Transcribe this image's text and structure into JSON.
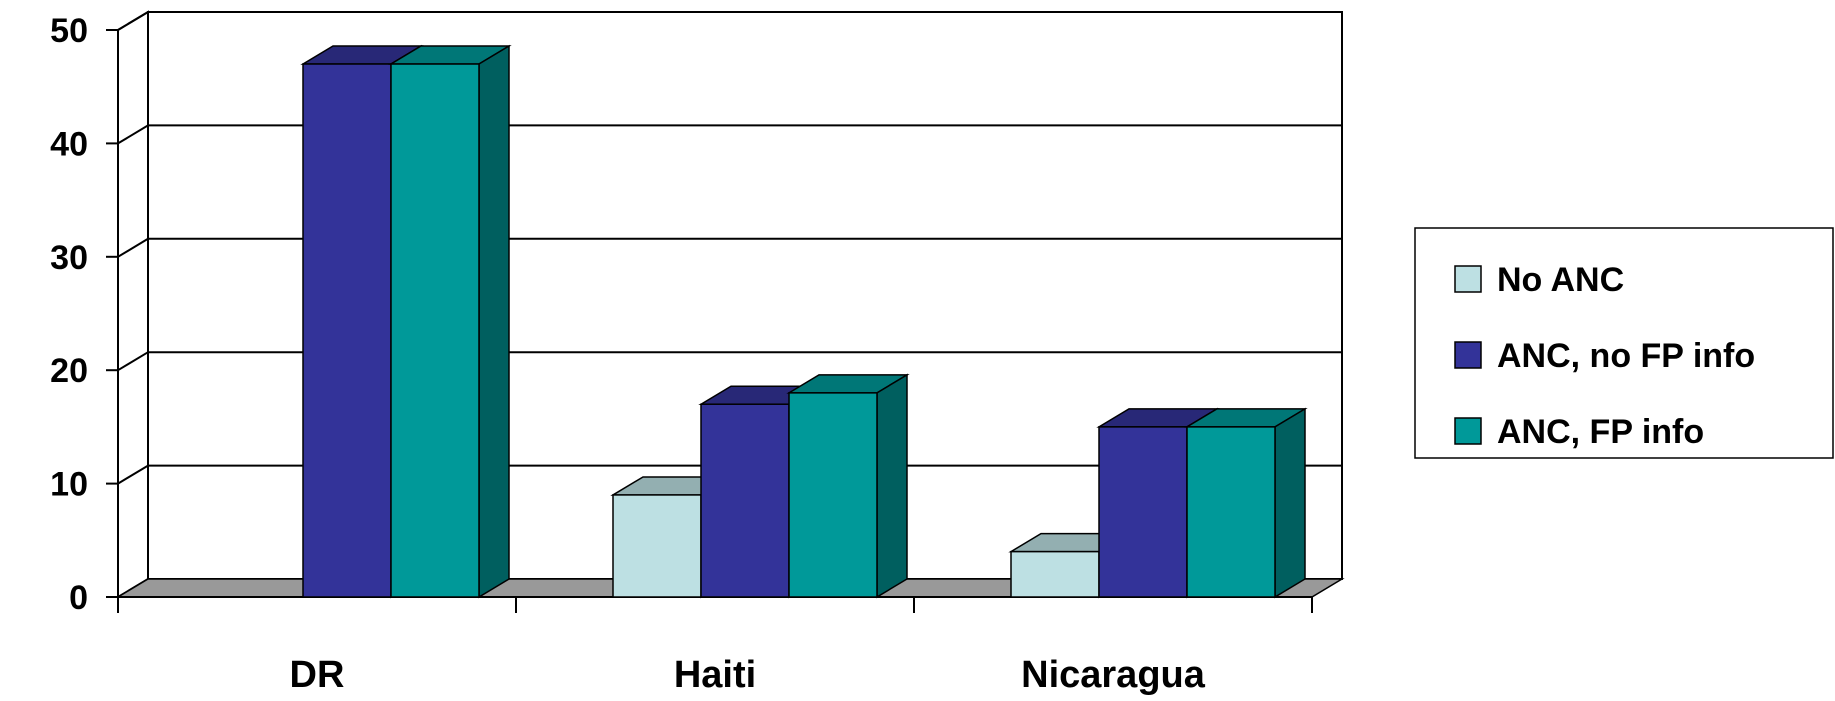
{
  "chart_data": {
    "type": "bar",
    "title": "",
    "xlabel": "",
    "ylabel": "",
    "ylim": [
      0,
      50
    ],
    "yticks": [
      0,
      10,
      20,
      30,
      40,
      50
    ],
    "categories": [
      "DR",
      "Haiti",
      "Nicaragua"
    ],
    "series": [
      {
        "name": "No ANC",
        "values": [
          null,
          9,
          4
        ],
        "color": "#bde0e3"
      },
      {
        "name": "ANC, no FP info",
        "values": [
          47,
          17,
          15
        ],
        "color": "#333399"
      },
      {
        "name": "ANC, FP info",
        "values": [
          47,
          18,
          15
        ],
        "color": "#009999"
      }
    ],
    "grid": true,
    "legend_position": "right"
  }
}
